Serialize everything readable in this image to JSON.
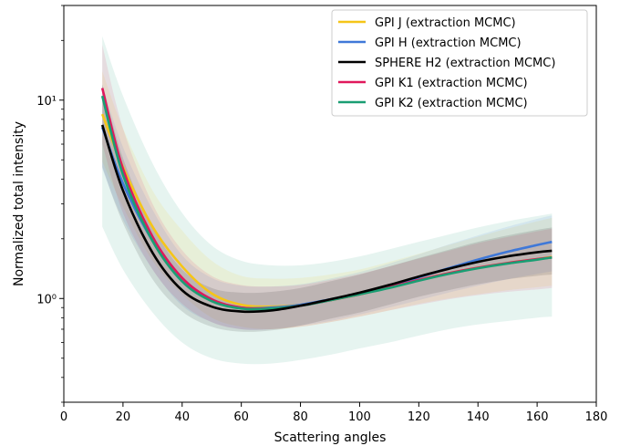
{
  "chart_data": {
    "type": "line",
    "title": "",
    "xlabel": "Scattering angles",
    "ylabel": "Normalized total intensity",
    "xlim": [
      0,
      180
    ],
    "ylim": [
      0.3,
      30
    ],
    "yscale": "log",
    "xticks": [
      0,
      20,
      40,
      60,
      80,
      100,
      120,
      140,
      160,
      180
    ],
    "yticks": [
      {
        "value": 1,
        "label": "10⁰"
      },
      {
        "value": 10,
        "label": "10¹"
      }
    ],
    "grid": false,
    "legend_position": "top-right",
    "series": [
      {
        "name": "GPI J (extraction MCMC)",
        "color": "#f5c518",
        "x": [
          13,
          20,
          30,
          40,
          50,
          60,
          70,
          80,
          90,
          100,
          110,
          120,
          130,
          140,
          150,
          160,
          165
        ],
        "y": [
          8.5,
          4.6,
          2.3,
          1.45,
          1.06,
          0.93,
          0.91,
          0.93,
          0.98,
          1.05,
          1.14,
          1.24,
          1.34,
          1.43,
          1.51,
          1.58,
          1.62
        ],
        "band_lower": [
          4.9,
          2.9,
          1.55,
          1.05,
          0.8,
          0.72,
          0.7,
          0.72,
          0.76,
          0.81,
          0.87,
          0.94,
          1.0,
          1.05,
          1.1,
          1.14,
          1.16
        ],
        "band_upper": [
          14.0,
          7.2,
          3.5,
          2.2,
          1.55,
          1.3,
          1.26,
          1.27,
          1.32,
          1.4,
          1.53,
          1.68,
          1.86,
          2.05,
          2.25,
          2.45,
          2.55
        ]
      },
      {
        "name": "GPI H (extraction MCMC)",
        "color": "#3f78d8",
        "x": [
          13,
          20,
          30,
          40,
          50,
          60,
          70,
          80,
          90,
          100,
          110,
          120,
          130,
          140,
          150,
          160,
          165
        ],
        "y": [
          7.3,
          3.8,
          1.95,
          1.22,
          0.98,
          0.9,
          0.9,
          0.93,
          0.99,
          1.06,
          1.16,
          1.28,
          1.42,
          1.57,
          1.72,
          1.86,
          1.93
        ],
        "band_lower": [
          4.5,
          2.5,
          1.4,
          0.92,
          0.76,
          0.7,
          0.7,
          0.73,
          0.77,
          0.83,
          0.9,
          0.98,
          1.07,
          1.16,
          1.25,
          1.33,
          1.37
        ],
        "band_upper": [
          12.0,
          5.8,
          2.8,
          1.65,
          1.27,
          1.16,
          1.15,
          1.18,
          1.26,
          1.36,
          1.5,
          1.67,
          1.87,
          2.08,
          2.3,
          2.52,
          2.62
        ]
      },
      {
        "name": "SPHERE H2 (extraction MCMC)",
        "color": "#000000",
        "x": [
          13,
          20,
          30,
          40,
          50,
          60,
          70,
          80,
          90,
          100,
          110,
          120,
          130,
          140,
          150,
          160,
          165
        ],
        "y": [
          7.5,
          3.5,
          1.7,
          1.1,
          0.91,
          0.86,
          0.87,
          0.92,
          0.99,
          1.07,
          1.17,
          1.29,
          1.41,
          1.53,
          1.63,
          1.71,
          1.74
        ],
        "band_lower": [
          4.6,
          2.4,
          1.25,
          0.86,
          0.72,
          0.68,
          0.69,
          0.73,
          0.79,
          0.85,
          0.93,
          1.02,
          1.1,
          1.18,
          1.25,
          1.3,
          1.32
        ],
        "band_upper": [
          12.0,
          5.1,
          2.3,
          1.4,
          1.13,
          1.07,
          1.08,
          1.13,
          1.22,
          1.32,
          1.45,
          1.6,
          1.76,
          1.93,
          2.08,
          2.22,
          2.28
        ]
      },
      {
        "name": "GPI K1 (extraction MCMC)",
        "color": "#e0185c",
        "x": [
          13,
          20,
          30,
          40,
          50,
          60,
          70,
          80,
          90,
          100,
          110,
          120,
          130,
          140,
          150,
          160,
          165
        ],
        "y": [
          11.5,
          4.5,
          2.05,
          1.27,
          0.99,
          0.9,
          0.89,
          0.92,
          0.98,
          1.05,
          1.14,
          1.24,
          1.34,
          1.43,
          1.51,
          1.58,
          1.61
        ],
        "band_lower": [
          6.0,
          2.7,
          1.4,
          0.94,
          0.76,
          0.7,
          0.7,
          0.72,
          0.76,
          0.81,
          0.87,
          0.93,
          0.99,
          1.04,
          1.08,
          1.11,
          1.13
        ],
        "band_upper": [
          19.0,
          7.2,
          3.0,
          1.75,
          1.3,
          1.17,
          1.15,
          1.17,
          1.24,
          1.33,
          1.45,
          1.59,
          1.74,
          1.9,
          2.04,
          2.18,
          2.25
        ]
      },
      {
        "name": "GPI K2 (extraction MCMC)",
        "color": "#1a9e73",
        "x": [
          13,
          20,
          30,
          40,
          50,
          60,
          70,
          80,
          90,
          100,
          110,
          120,
          130,
          140,
          150,
          160,
          165
        ],
        "y": [
          10.5,
          4.2,
          1.95,
          1.22,
          0.97,
          0.89,
          0.89,
          0.92,
          0.98,
          1.05,
          1.13,
          1.23,
          1.33,
          1.42,
          1.5,
          1.57,
          1.61
        ],
        "band_lower": [
          2.3,
          1.4,
          0.85,
          0.6,
          0.5,
          0.47,
          0.47,
          0.49,
          0.52,
          0.56,
          0.6,
          0.65,
          0.7,
          0.74,
          0.77,
          0.8,
          0.81
        ],
        "band_upper": [
          21.0,
          10.5,
          4.8,
          2.7,
          1.85,
          1.55,
          1.47,
          1.47,
          1.53,
          1.63,
          1.77,
          1.93,
          2.1,
          2.28,
          2.45,
          2.6,
          2.68
        ]
      }
    ]
  }
}
